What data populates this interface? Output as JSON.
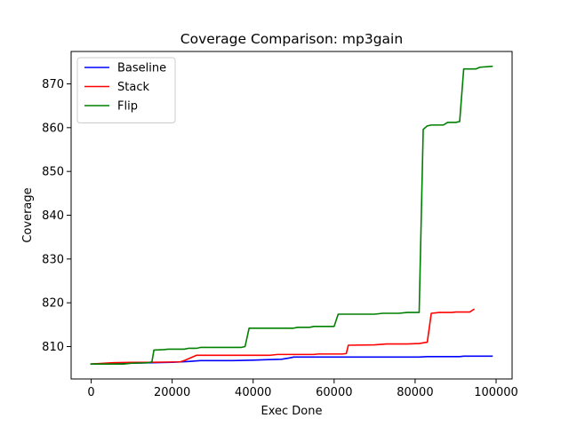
{
  "chart_data": {
    "type": "line",
    "title": "Coverage Comparison: mp3gain",
    "xlabel": "Exec Done",
    "ylabel": "Coverage",
    "xlim": [
      -4950,
      103950
    ],
    "ylim": [
      802.6,
      877.4
    ],
    "xticks": [
      0,
      20000,
      40000,
      60000,
      80000,
      100000
    ],
    "yticks": [
      810,
      820,
      830,
      840,
      850,
      860,
      870
    ],
    "grid": false,
    "legend_position": "top-left",
    "series": [
      {
        "name": "Baseline",
        "color": "#0000ff",
        "points": [
          [
            0,
            806
          ],
          [
            5000,
            806.1
          ],
          [
            10000,
            806.2
          ],
          [
            15000,
            806.3
          ],
          [
            20000,
            806.4
          ],
          [
            24000,
            806.6
          ],
          [
            27000,
            806.8
          ],
          [
            35000,
            806.8
          ],
          [
            40000,
            806.9
          ],
          [
            43000,
            807.0
          ],
          [
            47000,
            807.1
          ],
          [
            49000,
            807.4
          ],
          [
            50000,
            807.6
          ],
          [
            60000,
            807.6
          ],
          [
            70000,
            807.6
          ],
          [
            81000,
            807.6
          ],
          [
            83000,
            807.7
          ],
          [
            88000,
            807.7
          ],
          [
            91000,
            807.7
          ],
          [
            92000,
            807.8
          ],
          [
            99000,
            807.8
          ]
        ]
      },
      {
        "name": "Stack",
        "color": "#ff0000",
        "points": [
          [
            0,
            806
          ],
          [
            5000,
            806.3
          ],
          [
            10000,
            806.4
          ],
          [
            14000,
            806.4
          ],
          [
            22000,
            806.5
          ],
          [
            23000,
            806.8
          ],
          [
            26000,
            808
          ],
          [
            30000,
            808
          ],
          [
            40000,
            808
          ],
          [
            44000,
            808
          ],
          [
            46000,
            808.2
          ],
          [
            50000,
            808.2
          ],
          [
            55000,
            808.2
          ],
          [
            56000,
            808.3
          ],
          [
            62000,
            808.3
          ],
          [
            63000,
            808.4
          ],
          [
            63500,
            810.3
          ],
          [
            70000,
            810.4
          ],
          [
            73000,
            810.6
          ],
          [
            78000,
            810.6
          ],
          [
            81000,
            810.7
          ],
          [
            83000,
            811.0
          ],
          [
            84000,
            817.6
          ],
          [
            86000,
            817.8
          ],
          [
            89000,
            817.8
          ],
          [
            90000,
            817.9
          ],
          [
            93500,
            817.9
          ],
          [
            94500,
            818.5
          ]
        ]
      },
      {
        "name": "Flip",
        "color": "#008000",
        "points": [
          [
            0,
            806
          ],
          [
            5000,
            806
          ],
          [
            8000,
            806
          ],
          [
            10000,
            806.2
          ],
          [
            14000,
            806.3
          ],
          [
            15000,
            806.5
          ],
          [
            15500,
            809.2
          ],
          [
            18000,
            809.3
          ],
          [
            19000,
            809.4
          ],
          [
            23000,
            809.4
          ],
          [
            24000,
            809.6
          ],
          [
            26000,
            809.6
          ],
          [
            27000,
            809.8
          ],
          [
            37000,
            809.8
          ],
          [
            38000,
            810
          ],
          [
            39000,
            814.2
          ],
          [
            45000,
            814.2
          ],
          [
            50000,
            814.2
          ],
          [
            51000,
            814.4
          ],
          [
            54000,
            814.4
          ],
          [
            55000,
            814.6
          ],
          [
            60000,
            814.6
          ],
          [
            61000,
            817.4
          ],
          [
            70000,
            817.4
          ],
          [
            72000,
            817.6
          ],
          [
            76000,
            817.6
          ],
          [
            78000,
            817.8
          ],
          [
            81000,
            817.8
          ],
          [
            82000,
            859.6
          ],
          [
            83000,
            860.4
          ],
          [
            84000,
            860.6
          ],
          [
            87000,
            860.6
          ],
          [
            88000,
            861.2
          ],
          [
            90000,
            861.2
          ],
          [
            91000,
            861.4
          ],
          [
            92000,
            873.4
          ],
          [
            94000,
            873.4
          ],
          [
            95000,
            873.4
          ],
          [
            96000,
            873.8
          ],
          [
            99000,
            874
          ]
        ]
      }
    ]
  }
}
